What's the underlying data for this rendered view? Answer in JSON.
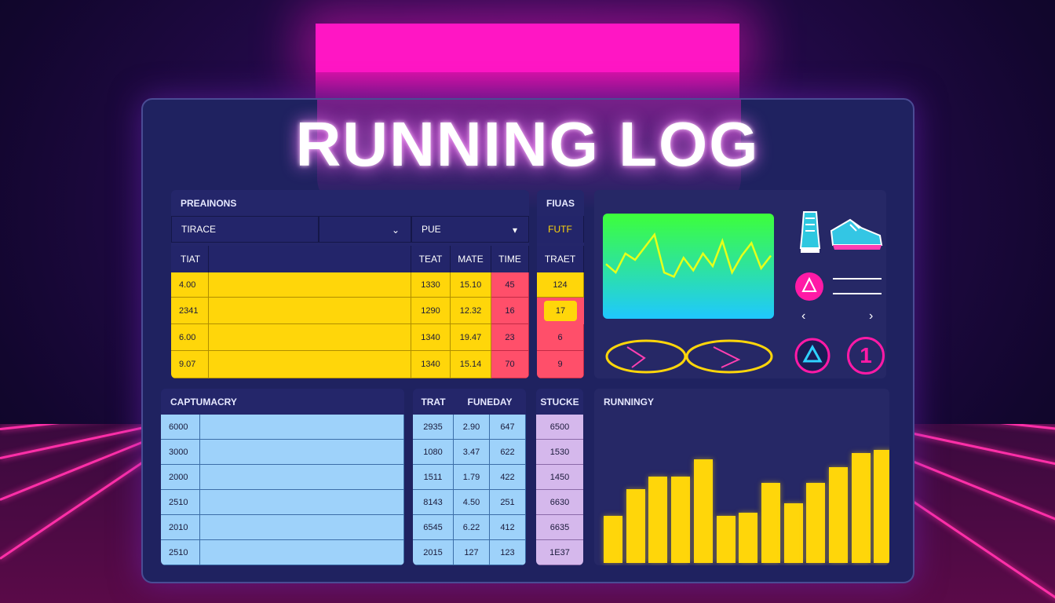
{
  "title": "RUNNING LOG",
  "preparations": {
    "header": "PREAINONS",
    "select_left": "TIRACE",
    "select_right": "PUE",
    "columns": [
      "TIAT",
      "TEAT",
      "MATE",
      "TIME"
    ],
    "rows": [
      {
        "a": "4.00",
        "b": "1330",
        "c": "15.10",
        "d": "45"
      },
      {
        "a": "2341",
        "b": "1290",
        "c": "12.32",
        "d": "16"
      },
      {
        "a": "6.00",
        "b": "1340",
        "c": "19.47",
        "d": "23"
      },
      {
        "a": "9.07",
        "b": "1340",
        "c": "15.14",
        "d": "70"
      }
    ]
  },
  "focus": {
    "header": "FIUAS",
    "sub": "FUTF",
    "column": "TRAET",
    "values": [
      "124",
      "17",
      "6",
      "9"
    ]
  },
  "summary": {
    "header": "CAPTUMACRY",
    "rows": [
      "6000",
      "3000",
      "2000",
      "2510",
      "2010",
      "2510"
    ]
  },
  "treadmill": {
    "columns": [
      "TRAT",
      "FUNEDAY"
    ],
    "rows": [
      [
        "2935",
        "2.90",
        "647"
      ],
      [
        "1080",
        "3.47",
        "622"
      ],
      [
        "1511",
        "1.79",
        "422"
      ],
      [
        "8143",
        "4.50",
        "251"
      ],
      [
        "6545",
        "6.22",
        "412"
      ],
      [
        "2015",
        "127",
        "123"
      ]
    ]
  },
  "stucke": {
    "header": "STUCKE",
    "rows": [
      "6500",
      "1530",
      "1450",
      "6630",
      "6635",
      "1E37"
    ]
  },
  "running": {
    "header": "RUNNINGY"
  },
  "badges": {
    "number": "1"
  },
  "icons": {
    "shoe1": "sneaker-icon",
    "shoe2": "sneaker-side-icon",
    "alert": "alert-icon",
    "triangle": "triangle-button-icon",
    "prev": "chevron-left-icon",
    "next": "chevron-right-icon"
  },
  "colors": {
    "accent_pink": "#ff16c4",
    "yellow": "#ffd60a",
    "red": "#ff4f6a",
    "blue": "#9ed2fa",
    "lilac": "#d5b8ec",
    "panel": "#27296a"
  },
  "chart_data": [
    {
      "type": "line",
      "values": [
        52,
        44,
        62,
        56,
        68,
        80,
        44,
        40,
        58,
        46,
        62,
        50,
        74,
        44,
        60,
        72,
        48,
        60
      ]
    },
    {
      "type": "bar",
      "values": [
        30,
        47,
        55,
        55,
        66,
        30,
        32,
        51,
        38,
        51,
        61,
        70,
        72
      ]
    }
  ]
}
